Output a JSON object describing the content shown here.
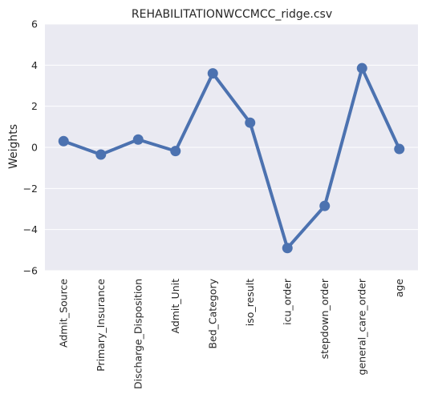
{
  "chart_data": {
    "type": "line",
    "title": "REHABILITATIONWCCMCC_ridge.csv",
    "xlabel": "",
    "ylabel": "Weights",
    "categories": [
      "Admit_Source",
      "Primary_Insurance",
      "Discharge_Disposition",
      "Admit_Unit",
      "Bed_Category",
      "iso_result",
      "icu_order",
      "stepdown_order",
      "general_care_order",
      "age"
    ],
    "series": [
      {
        "values": [
          0.3,
          -0.35,
          0.38,
          -0.18,
          3.6,
          1.2,
          -4.9,
          -2.85,
          3.85,
          -0.08
        ]
      }
    ],
    "ylim": [
      -6,
      6
    ],
    "yticks": [
      -6,
      -4,
      -2,
      0,
      2,
      4,
      6
    ],
    "grid": true,
    "colors": {
      "background": "#eaeaf2",
      "grid": "#ffffff",
      "line": "#4c72b0"
    }
  }
}
